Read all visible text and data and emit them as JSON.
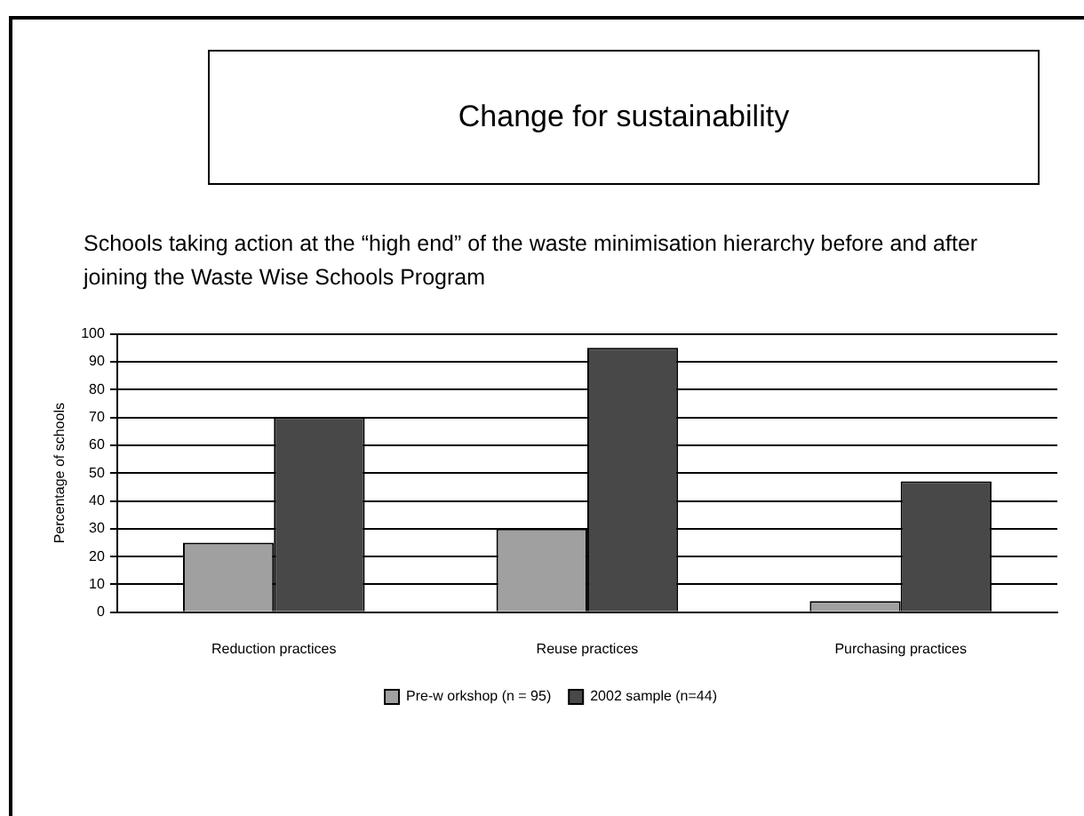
{
  "chart_data": {
    "type": "bar",
    "title": "Change for sustainability",
    "subtitle": "Schools taking action at the “high end” of the waste minimisation hierarchy before and after joining the Waste Wise Schools Program",
    "ylabel": "Percentage of schools",
    "categories": [
      "Reduction practices",
      "Reuse practices",
      "Purchasing practices"
    ],
    "series": [
      {
        "name": "Pre-w orkshop (n = 95)",
        "color": "#a0a0a0",
        "values": [
          25,
          30,
          4
        ]
      },
      {
        "name": "2002 sample (n=44)",
        "color": "#484848",
        "values": [
          70,
          95,
          47
        ]
      }
    ],
    "ylim": [
      0,
      100
    ],
    "yticks": [
      0,
      10,
      20,
      30,
      40,
      50,
      60,
      70,
      80,
      90,
      100
    ],
    "grid": "y",
    "legend": "bottom"
  }
}
